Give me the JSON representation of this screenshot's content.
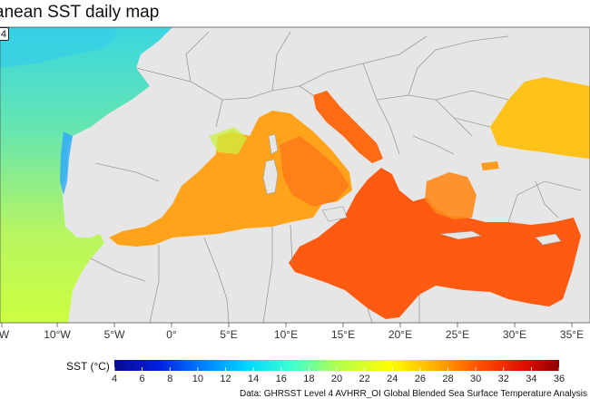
{
  "title": "anean SST daily map",
  "date_label": "4",
  "x_axis_ticks": [
    "°W",
    "10°W",
    "5°W",
    "0°",
    "5°E",
    "10°E",
    "15°E",
    "20°E",
    "25°E",
    "30°E",
    "35°E"
  ],
  "legend": {
    "title": "SST (°C)",
    "ticks": [
      "4",
      "6",
      "8",
      "10",
      "12",
      "14",
      "16",
      "18",
      "20",
      "22",
      "24",
      "26",
      "28",
      "30",
      "32",
      "34",
      "36"
    ],
    "colors": [
      "#0a0a8c",
      "#0020e0",
      "#0080ff",
      "#00d8ff",
      "#40ffd0",
      "#b0ff50",
      "#ffff00",
      "#ffb000",
      "#ff5000",
      "#e01000",
      "#8c0000"
    ]
  },
  "attribution": "Data: GHRSST Level 4 AVHRR_OI Global Blended Sea Surface Temperature Analysis",
  "colors": {
    "land": "#e6e6e6",
    "border": "#9a9a9a",
    "atlantic": "#7ee09a",
    "atlantic_warm": "#ccff50",
    "west_med": "#ffa31a",
    "east_med": "#ff5a12",
    "black_sea": "#ffc21a",
    "coastal_blue": "#2aa8ff"
  }
}
